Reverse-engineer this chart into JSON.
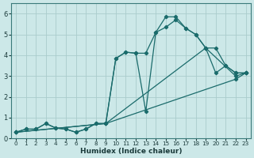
{
  "xlabel": "Humidex (Indice chaleur)",
  "bg_color": "#cce8e8",
  "line_color": "#1a6b6b",
  "grid_color": "#aacccc",
  "xlim": [
    -0.5,
    23.5
  ],
  "ylim": [
    0,
    6.5
  ],
  "xticks": [
    0,
    1,
    2,
    3,
    4,
    5,
    6,
    7,
    8,
    9,
    10,
    11,
    12,
    13,
    14,
    15,
    16,
    17,
    18,
    19,
    20,
    21,
    22,
    23
  ],
  "yticks": [
    0,
    1,
    2,
    3,
    4,
    5,
    6
  ],
  "lines": [
    {
      "x": [
        0,
        1,
        2,
        3,
        4,
        5,
        6,
        7,
        8,
        9,
        10,
        11,
        12,
        13,
        14,
        15,
        16,
        17,
        18,
        19,
        20,
        21,
        22,
        23
      ],
      "y": [
        0.3,
        0.45,
        0.45,
        0.72,
        0.5,
        0.45,
        0.3,
        0.45,
        0.72,
        0.72,
        3.85,
        4.15,
        4.1,
        4.1,
        5.1,
        5.85,
        5.85,
        5.3,
        5.0,
        4.35,
        3.15,
        3.5,
        3.15,
        3.15
      ]
    },
    {
      "x": [
        0,
        1,
        2,
        3,
        4,
        5,
        6,
        7,
        8,
        9,
        10,
        11,
        12,
        13,
        14,
        15,
        16,
        17,
        18,
        19,
        20,
        21,
        22,
        23
      ],
      "y": [
        0.3,
        0.45,
        0.45,
        0.72,
        0.5,
        0.45,
        0.3,
        0.45,
        0.72,
        0.72,
        3.85,
        4.15,
        4.1,
        1.3,
        5.1,
        5.35,
        5.7,
        5.3,
        5.0,
        4.35,
        4.35,
        3.5,
        3.15,
        3.15
      ]
    },
    {
      "x": [
        0,
        9,
        19,
        22,
        23
      ],
      "y": [
        0.3,
        0.72,
        4.35,
        3.0,
        3.15
      ]
    },
    {
      "x": [
        0,
        9,
        22,
        23
      ],
      "y": [
        0.3,
        0.72,
        2.85,
        3.15
      ]
    }
  ]
}
